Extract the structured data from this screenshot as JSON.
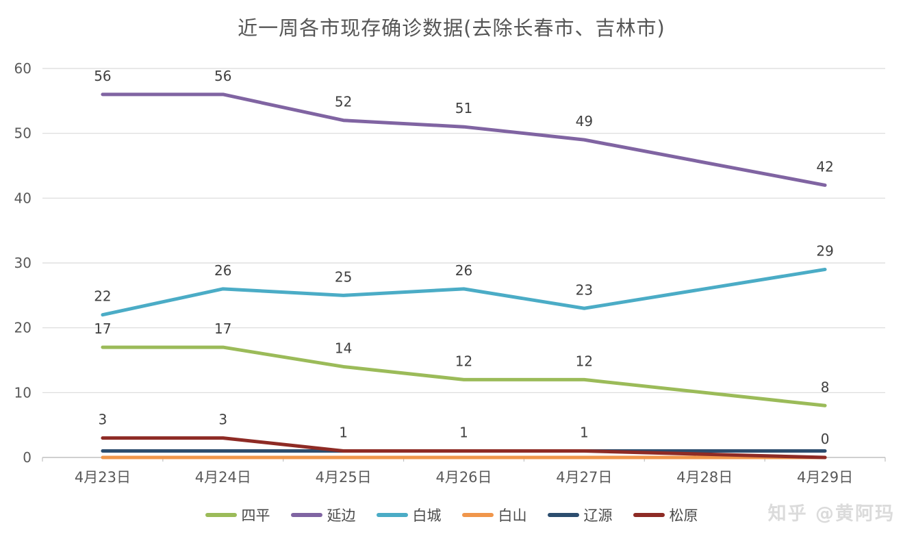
{
  "title": "近一周各市现存确诊数据(去除长春市、吉林市)",
  "watermark": "知乎 @黄阿玛",
  "chart_data": {
    "type": "line",
    "title": "近一周各市现存确诊数据(去除长春市、吉林市)",
    "categories": [
      "4月23日",
      "4月24日",
      "4月25日",
      "4月26日",
      "4月27日",
      "4月28日",
      "4月29日"
    ],
    "xlabel": "",
    "ylabel": "",
    "ylim": [
      0,
      60
    ],
    "yticks": [
      0,
      10,
      20,
      30,
      40,
      50,
      60
    ],
    "grid": true,
    "legend_position": "bottom",
    "note": "values at 4月28日 carry no data label in the chart",
    "series": [
      {
        "key": "siping",
        "name": "四平",
        "color": "#9BBB59",
        "values": [
          17,
          17,
          14,
          12,
          12,
          null,
          8
        ],
        "show_labels": true
      },
      {
        "key": "yanbian",
        "name": "延边",
        "color": "#8064A2",
        "values": [
          56,
          56,
          52,
          51,
          49,
          null,
          42
        ],
        "show_labels": true
      },
      {
        "key": "baicheng",
        "name": "白城",
        "color": "#4BACC6",
        "values": [
          22,
          26,
          25,
          26,
          23,
          null,
          29
        ],
        "show_labels": true
      },
      {
        "key": "baishan",
        "name": "白山",
        "color": "#F0964B",
        "values": [
          0,
          0,
          0,
          0,
          0,
          0,
          0
        ],
        "show_labels": false
      },
      {
        "key": "liaoyuan",
        "name": "辽源",
        "color": "#2C4D6E",
        "values": [
          1,
          1,
          1,
          1,
          1,
          1,
          1
        ],
        "show_labels": false
      },
      {
        "key": "songyuan",
        "name": "松原",
        "color": "#8E2B25",
        "values": [
          3,
          3,
          1,
          1,
          1,
          null,
          0
        ],
        "show_labels": true
      }
    ],
    "colors": {
      "gridline": "#D9D9D9",
      "axis": "#C0C0C0",
      "tick_label": "#595959",
      "data_label": "#404040"
    }
  }
}
